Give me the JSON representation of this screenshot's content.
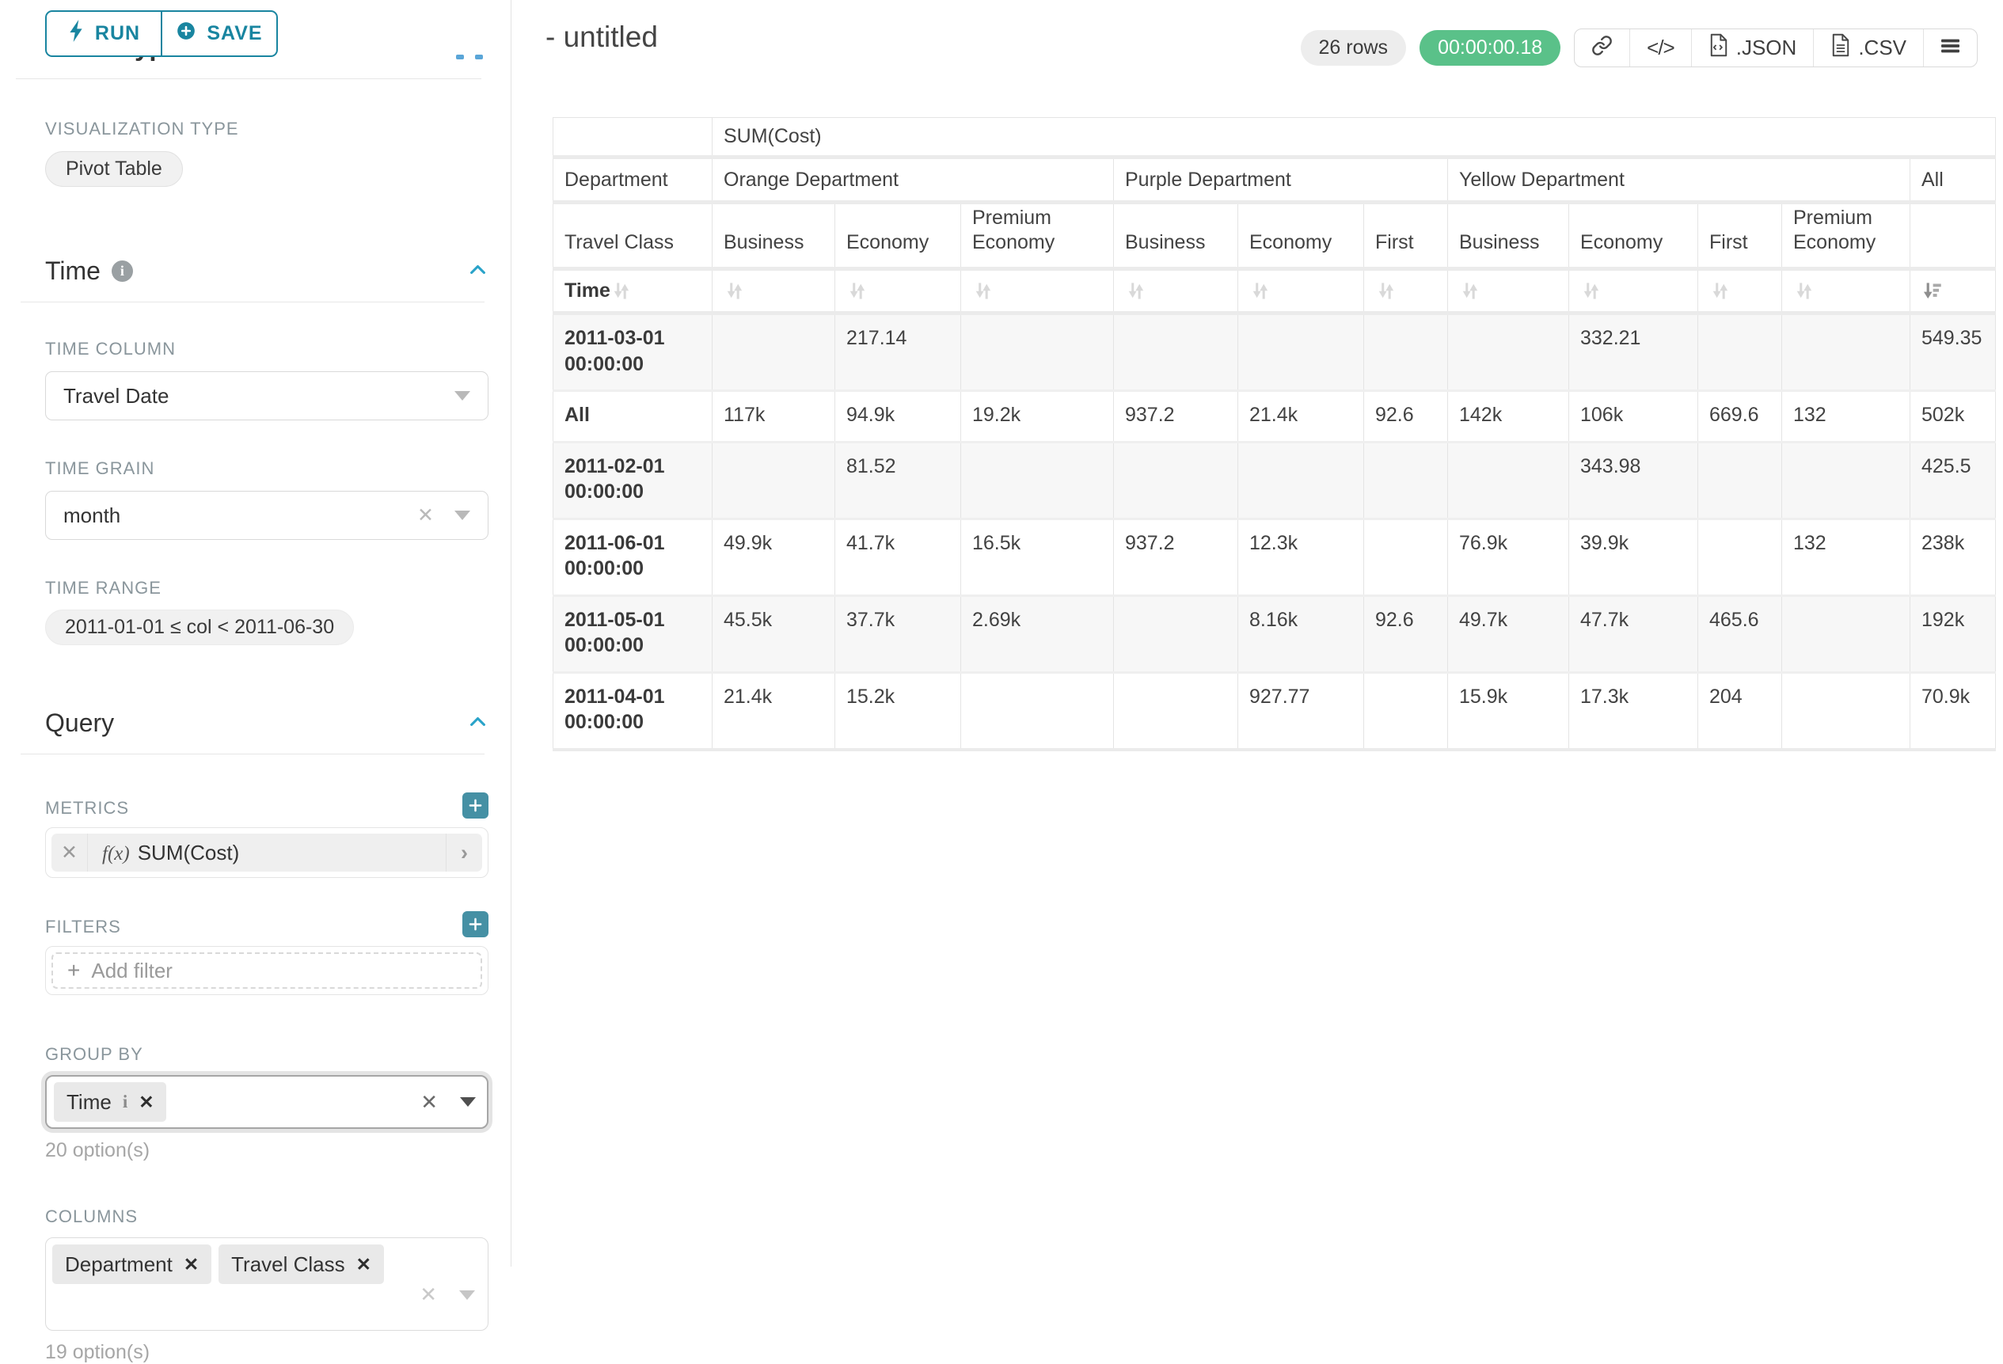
{
  "colors": {
    "accent_teal": "#1985a0",
    "light_teal": "#29a3c9",
    "plus_button_teal": "#4590a4",
    "timer_green": "#5ac189",
    "stripe_gray": "#f7f7f7",
    "border_gray": "#e4e4e4"
  },
  "sidebar": {
    "run_label": "RUN",
    "save_label": "SAVE",
    "scrolled_heading": "Chart Type",
    "viz": {
      "label": "VISUALIZATION TYPE",
      "value": "Pivot Table"
    },
    "time": {
      "title": "Time",
      "column_label": "TIME COLUMN",
      "column_value": "Travel Date",
      "grain_label": "TIME GRAIN",
      "grain_value": "month",
      "range_label": "TIME RANGE",
      "range_value": "2011-01-01 ≤ col < 2011-06-30"
    },
    "query": {
      "title": "Query",
      "metrics_label": "METRICS",
      "metric_fx": "f(x)",
      "metric_value": "SUM(Cost)",
      "filters_label": "FILTERS",
      "add_filter": "Add filter",
      "group_by_label": "GROUP BY",
      "group_by_tag": "Time",
      "group_by_hint": "20 option(s)",
      "columns_label": "COLUMNS",
      "columns_tags": [
        "Department",
        "Travel Class"
      ],
      "columns_hint": "19 option(s)"
    }
  },
  "header": {
    "title": "- untitled",
    "row_count": "26 rows",
    "timer": "00:00:00.18",
    "code_glyph": "</>",
    "json_label": ".JSON",
    "csv_label": ".CSV"
  },
  "pivot": {
    "metric_label": "SUM(Cost)",
    "col_dim_1": "Department",
    "col_dim_2": "Travel Class",
    "row_dim": "Time",
    "groups": [
      {
        "name": "Orange Department",
        "cols": [
          "Business",
          "Economy",
          "Premium Economy"
        ]
      },
      {
        "name": "Purple Department",
        "cols": [
          "Business",
          "Economy",
          "First"
        ]
      },
      {
        "name": "Yellow Department",
        "cols": [
          "Business",
          "Economy",
          "First",
          "Premium Economy"
        ]
      },
      {
        "name": "All",
        "cols": [
          ""
        ]
      }
    ],
    "rows": [
      {
        "label": "2011-03-01 00:00:00",
        "values": [
          "",
          "217.14",
          "",
          "",
          "",
          "",
          "",
          "332.21",
          "",
          "",
          "549.35"
        ]
      },
      {
        "label": "All",
        "values": [
          "117k",
          "94.9k",
          "19.2k",
          "937.2",
          "21.4k",
          "92.6",
          "142k",
          "106k",
          "669.6",
          "132",
          "502k"
        ]
      },
      {
        "label": "2011-02-01 00:00:00",
        "values": [
          "",
          "81.52",
          "",
          "",
          "",
          "",
          "",
          "343.98",
          "",
          "",
          "425.5"
        ]
      },
      {
        "label": "2011-06-01 00:00:00",
        "values": [
          "49.9k",
          "41.7k",
          "16.5k",
          "937.2",
          "12.3k",
          "",
          "76.9k",
          "39.9k",
          "",
          "132",
          "238k"
        ]
      },
      {
        "label": "2011-05-01 00:00:00",
        "values": [
          "45.5k",
          "37.7k",
          "2.69k",
          "",
          "8.16k",
          "92.6",
          "49.7k",
          "47.7k",
          "465.6",
          "",
          "192k"
        ]
      },
      {
        "label": "2011-04-01 00:00:00",
        "values": [
          "21.4k",
          "15.2k",
          "",
          "",
          "927.77",
          "",
          "15.9k",
          "17.3k",
          "204",
          "",
          "70.9k"
        ]
      }
    ]
  }
}
